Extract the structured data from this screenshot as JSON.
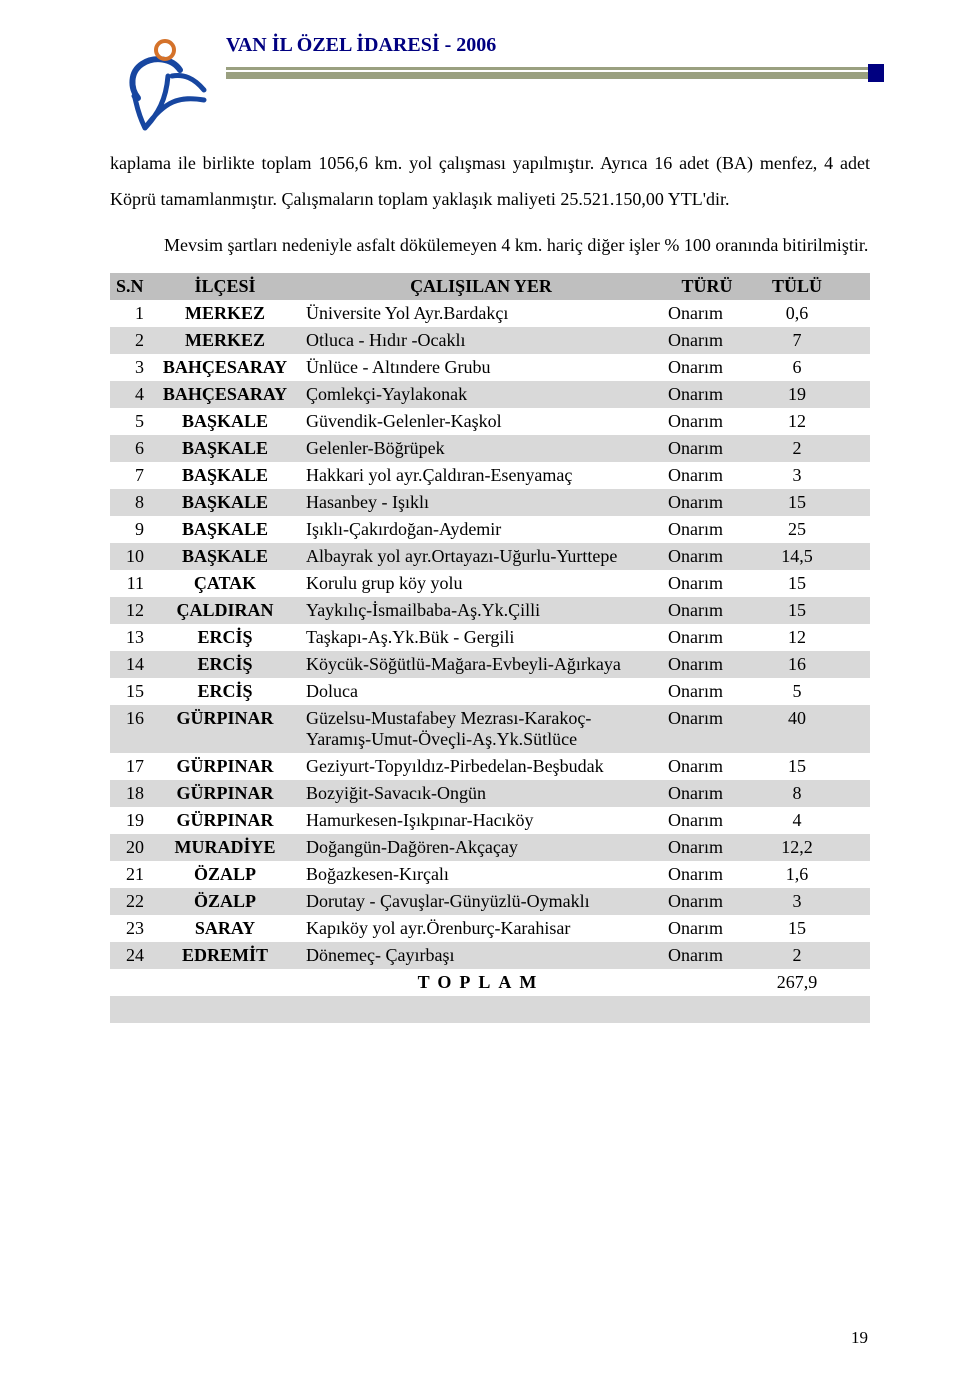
{
  "document_title": "VAN İL ÖZEL İDARESİ - 2006",
  "paragraph_1": "kaplama ile birlikte toplam 1056,6 km. yol çalışması yapılmıştır. Ayrıca 16 adet (BA) menfez, 4 adet Köprü tamamlanmıştır. Çalışmaların toplam yaklaşık maliyeti 25.521.150,00 YTL'dir.",
  "paragraph_2_pre": "",
  "paragraph_2": "Mevsim şartları nedeniyle asfalt dökülemeyen 4 km. hariç diğer işler % 100 oranında bitirilmiştir.",
  "table": {
    "columns": [
      "S.N",
      "İLÇESİ",
      "ÇALIŞILAN YER",
      "TÜRÜ",
      "TÜLÜ"
    ],
    "header_bg": "#bfbfbf",
    "zebra_bg": "#d9d9d9",
    "rows": [
      {
        "sn": "1",
        "ilce": "MERKEZ",
        "yer": "Üniversite Yol Ayr.Bardakçı",
        "turu": "Onarım",
        "tulu": "0,6"
      },
      {
        "sn": "2",
        "ilce": "MERKEZ",
        "yer": "Otluca - Hıdır -Ocaklı",
        "turu": "Onarım",
        "tulu": "7"
      },
      {
        "sn": "3",
        "ilce": "BAHÇESARAY",
        "yer": "Ünlüce - Altındere Grubu",
        "turu": "Onarım",
        "tulu": "6"
      },
      {
        "sn": "4",
        "ilce": "BAHÇESARAY",
        "yer": "Çomlekçi-Yaylakonak",
        "turu": "Onarım",
        "tulu": "19"
      },
      {
        "sn": "5",
        "ilce": "BAŞKALE",
        "yer": "Güvendik-Gelenler-Kaşkol",
        "turu": "Onarım",
        "tulu": "12"
      },
      {
        "sn": "6",
        "ilce": "BAŞKALE",
        "yer": "Gelenler-Böğrüpek",
        "turu": "Onarım",
        "tulu": "2"
      },
      {
        "sn": "7",
        "ilce": "BAŞKALE",
        "yer": "Hakkari yol ayr.Çaldıran-Esenyamaç",
        "turu": "Onarım",
        "tulu": "3"
      },
      {
        "sn": "8",
        "ilce": "BAŞKALE",
        "yer": "Hasanbey - Işıklı",
        "turu": "Onarım",
        "tulu": "15"
      },
      {
        "sn": "9",
        "ilce": "BAŞKALE",
        "yer": "Işıklı-Çakırdoğan-Aydemir",
        "turu": "Onarım",
        "tulu": "25"
      },
      {
        "sn": "10",
        "ilce": "BAŞKALE",
        "yer": "Albayrak yol ayr.Ortayazı-Uğurlu-Yurttepe",
        "turu": "Onarım",
        "tulu": "14,5"
      },
      {
        "sn": "11",
        "ilce": "ÇATAK",
        "yer": "Korulu grup köy yolu",
        "turu": "Onarım",
        "tulu": "15"
      },
      {
        "sn": "12",
        "ilce": "ÇALDIRAN",
        "yer": "Yaykılıç-İsmailbaba-Aş.Yk.Çilli",
        "turu": "Onarım",
        "tulu": "15"
      },
      {
        "sn": "13",
        "ilce": "ERCİŞ",
        "yer": "Taşkapı-Aş.Yk.Bük - Gergili",
        "turu": "Onarım",
        "tulu": "12"
      },
      {
        "sn": "14",
        "ilce": "ERCİŞ",
        "yer": "Köycük-Söğütlü-Mağara-Evbeyli-Ağırkaya",
        "turu": "Onarım",
        "tulu": "16"
      },
      {
        "sn": "15",
        "ilce": "ERCİŞ",
        "yer": "Doluca",
        "turu": "Onarım",
        "tulu": "5"
      },
      {
        "sn": "16",
        "ilce": "GÜRPINAR",
        "yer": "Güzelsu-Mustafabey Mezrası-Karakoç-Yaramış-Umut-Öveçli-Aş.Yk.Sütlüce",
        "turu": "Onarım",
        "tulu": "40"
      },
      {
        "sn": "17",
        "ilce": "GÜRPINAR",
        "yer": "Geziyurt-Topyıldız-Pirbedelan-Beşbudak",
        "turu": "Onarım",
        "tulu": "15"
      },
      {
        "sn": "18",
        "ilce": "GÜRPINAR",
        "yer": "Bozyiğit-Savacık-Ongün",
        "turu": "Onarım",
        "tulu": "8"
      },
      {
        "sn": "19",
        "ilce": "GÜRPINAR",
        "yer": "Hamurkesen-Işıkpınar-Hacıköy",
        "turu": "Onarım",
        "tulu": "4"
      },
      {
        "sn": "20",
        "ilce": "MURADİYE",
        "yer": "Doğangün-Dağören-Akçaçay",
        "turu": "Onarım",
        "tulu": "12,2"
      },
      {
        "sn": "21",
        "ilce": "ÖZALP",
        "yer": "Boğazkesen-Kırçalı",
        "turu": "Onarım",
        "tulu": "1,6"
      },
      {
        "sn": "22",
        "ilce": "ÖZALP",
        "yer": "Dorutay - Çavuşlar-Günyüzlü-Oymaklı",
        "turu": "Onarım",
        "tulu": "3"
      },
      {
        "sn": "23",
        "ilce": "SARAY",
        "yer": "Kapıköy yol ayr.Örenburç-Karahisar",
        "turu": "Onarım",
        "tulu": "15"
      },
      {
        "sn": "24",
        "ilce": "EDREMİT",
        "yer": "Dönemeç- Çayırbaşı",
        "turu": "Onarım",
        "tulu": "2"
      }
    ],
    "total_label": "TOPLAM",
    "total_value": "267,9"
  },
  "page_number": "19"
}
